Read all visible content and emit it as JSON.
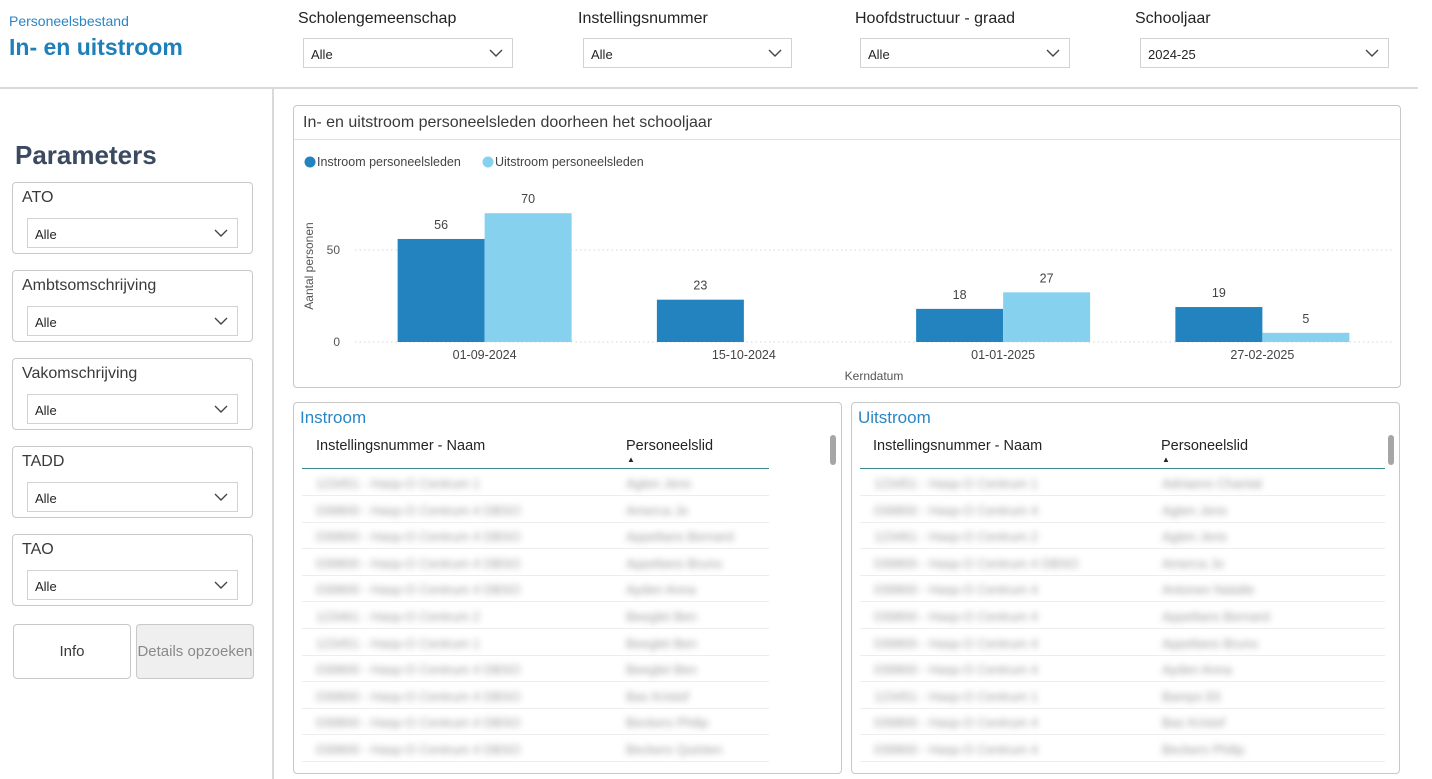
{
  "header": {
    "subtitle": "Personeelsbestand",
    "title": "In- en uitstroom"
  },
  "slicers": [
    {
      "label": "Scholengemeenschap",
      "value": "Alle"
    },
    {
      "label": "Instellingsnummer",
      "value": "Alle"
    },
    {
      "label": "Hoofdstructuur - graad",
      "value": "Alle"
    },
    {
      "label": "Schooljaar",
      "value": "2024-25"
    }
  ],
  "parameters": {
    "title": "Parameters",
    "items": [
      {
        "label": "ATO",
        "value": "Alle"
      },
      {
        "label": "Ambtsomschrijving",
        "value": "Alle"
      },
      {
        "label": "Vakomschrijving",
        "value": "Alle"
      },
      {
        "label": "TADD",
        "value": "Alle"
      },
      {
        "label": "TAO",
        "value": "Alle"
      }
    ],
    "info_button": "Info",
    "details_button": "Details opzoeken"
  },
  "chart": {
    "title": "In- en uitstroom personeelsleden doorheen het schooljaar",
    "colors": {
      "instroom": "#2283bf",
      "uitstroom": "#86d2ee",
      "grid": "#d6d6d6"
    }
  },
  "chart_data": {
    "type": "bar",
    "categories": [
      "01-09-2024",
      "15-10-2024",
      "01-01-2025",
      "27-02-2025"
    ],
    "series": [
      {
        "name": "Instroom personeelsleden",
        "values": [
          56,
          23,
          18,
          19
        ]
      },
      {
        "name": "Uitstroom personeelsleden",
        "values": [
          70,
          null,
          27,
          5
        ]
      }
    ],
    "xlabel": "Kerndatum",
    "ylabel": "Aantal personen",
    "yticks": [
      0,
      50
    ],
    "ylim": [
      0,
      70
    ],
    "grid": true,
    "legend": "top-left"
  },
  "instroom": {
    "title": "Instroom",
    "columns": [
      "Instellingsnummer - Naam",
      "Personeelslid"
    ],
    "rows": [
      [
        "123451 - Hasp-O Centrum 1",
        "Agten Jens"
      ],
      [
        "039800 - Hasp-O Centrum 4 DBSO",
        "Amerca Jo"
      ],
      [
        "039800 - Hasp-O Centrum 4 DBSO",
        "Appeltans Bernard"
      ],
      [
        "039800 - Hasp-O Centrum 4 DBSO",
        "Appeltans Bruno"
      ],
      [
        "039800 - Hasp-O Centrum 4 DBSO",
        "Ayden Anna"
      ],
      [
        "123461 - Hasp-O Centrum 2",
        "Beeglet Ben"
      ],
      [
        "123451 - Hasp-O Centrum 1",
        "Beeglet Ben"
      ],
      [
        "039800 - Hasp-O Centrum 4 DBSO",
        "Beeglet Ben"
      ],
      [
        "039800 - Hasp-O Centrum 4 DBSO",
        "Bas Kristof"
      ],
      [
        "039800 - Hasp-O Centrum 4 DBSO",
        "Beckers Philip"
      ],
      [
        "039800 - Hasp-O Centrum 4 DBSO",
        "Beckers Quinten"
      ]
    ]
  },
  "uitstroom": {
    "title": "Uitstroom",
    "columns": [
      "Instellingsnummer - Naam",
      "Personeelslid"
    ],
    "rows": [
      [
        "123451 - Hasp-O Centrum 1",
        "Adriaens Chantal"
      ],
      [
        "039800 - Hasp-O Centrum 4",
        "Agten Jens"
      ],
      [
        "123461 - Hasp-O Centrum 2",
        "Agten Jens"
      ],
      [
        "039800 - Hasp-O Centrum 4 DBSO",
        "Amerca Jo"
      ],
      [
        "039800 - Hasp-O Centrum 4",
        "Antonen Natalie"
      ],
      [
        "039800 - Hasp-O Centrum 4",
        "Appeltans Bernard"
      ],
      [
        "039800 - Hasp-O Centrum 4",
        "Appeltans Bruno"
      ],
      [
        "039800 - Hasp-O Centrum 4",
        "Ayden Anna"
      ],
      [
        "123451 - Hasp-O Centrum 1",
        "Bamps Eli"
      ],
      [
        "039800 - Hasp-O Centrum 4",
        "Bas Kristof"
      ],
      [
        "039800 - Hasp-O Centrum 4",
        "Beckers Philip"
      ]
    ]
  }
}
